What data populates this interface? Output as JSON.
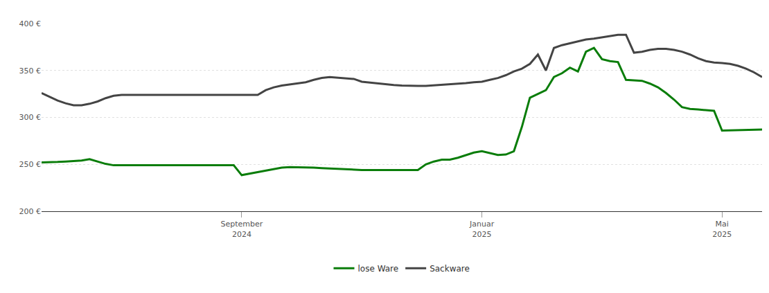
{
  "chart_data": {
    "type": "line",
    "categories": [
      null,
      null,
      null,
      null,
      null,
      null,
      null,
      null,
      null,
      null,
      null,
      null,
      null,
      null,
      null,
      null,
      null,
      null,
      null,
      null,
      null,
      null,
      null,
      null,
      null,
      "September\n2024",
      null,
      null,
      null,
      null,
      null,
      null,
      null,
      null,
      null,
      null,
      null,
      null,
      null,
      null,
      null,
      null,
      null,
      null,
      null,
      null,
      null,
      null,
      null,
      null,
      null,
      null,
      null,
      null,
      null,
      "Januar\n2025",
      null,
      null,
      null,
      null,
      null,
      null,
      null,
      null,
      null,
      null,
      null,
      null,
      null,
      null,
      null,
      null,
      null,
      null,
      null,
      null,
      null,
      null,
      null,
      null,
      null,
      null,
      null,
      null,
      null,
      "Mai\n2025",
      null,
      null,
      null,
      null,
      null
    ],
    "series": [
      {
        "name": "lose Ware",
        "color": "#0a7d0a",
        "values": [
          252,
          252,
          252.5,
          253,
          253.5,
          254,
          255.5,
          253,
          250.5,
          249,
          249,
          249,
          249,
          249,
          249,
          249,
          249,
          249,
          249,
          249,
          249,
          249,
          249,
          249,
          249,
          238.5,
          240,
          241.5,
          243.5,
          245,
          246.5,
          247,
          247,
          246.8,
          246.5,
          246,
          245.5,
          245,
          244.5,
          244.3,
          244,
          244,
          244,
          244,
          244,
          244,
          244,
          244,
          250,
          253,
          255,
          255,
          257,
          260,
          262.5,
          264,
          262,
          260,
          260.5,
          264,
          290,
          321,
          325,
          329,
          343,
          347,
          353,
          349,
          370,
          374,
          362,
          360,
          359,
          340,
          339.5,
          339,
          336,
          332,
          326,
          319,
          311,
          309,
          308.5,
          308,
          307,
          286,
          286.3,
          286.5,
          286.8,
          287,
          287
        ]
      },
      {
        "name": "Sackware",
        "color": "#444444",
        "values": [
          326,
          322,
          318,
          315,
          313,
          313,
          314.5,
          317,
          320.5,
          323,
          324,
          324,
          324,
          324,
          324,
          324,
          324,
          324,
          324,
          324,
          324,
          324,
          324,
          324,
          324,
          324,
          324,
          324,
          329,
          332,
          334,
          335,
          336,
          337.5,
          340,
          342,
          343,
          342.5,
          342,
          341,
          338,
          337,
          336,
          335,
          334.5,
          334,
          333.5,
          333.5,
          333.5,
          334,
          334.5,
          335,
          336,
          336.5,
          337.5,
          338,
          340,
          342,
          345,
          349,
          352,
          357,
          367,
          350,
          374,
          377,
          379,
          381,
          383,
          384,
          385.5,
          387,
          388,
          388,
          369,
          370,
          372,
          373,
          373,
          372,
          370,
          367,
          363,
          360,
          358.5,
          358,
          357,
          355,
          352,
          348,
          343
        ]
      }
    ],
    "ylim": [
      200,
      400
    ],
    "yticks": [
      {
        "value": 200,
        "label": "200 €"
      },
      {
        "value": 250,
        "label": "250 €"
      },
      {
        "value": 300,
        "label": "300 €"
      },
      {
        "value": 350,
        "label": "350 €"
      },
      {
        "value": 400,
        "label": "400 €"
      }
    ],
    "grid": true,
    "legend": "bottom"
  }
}
